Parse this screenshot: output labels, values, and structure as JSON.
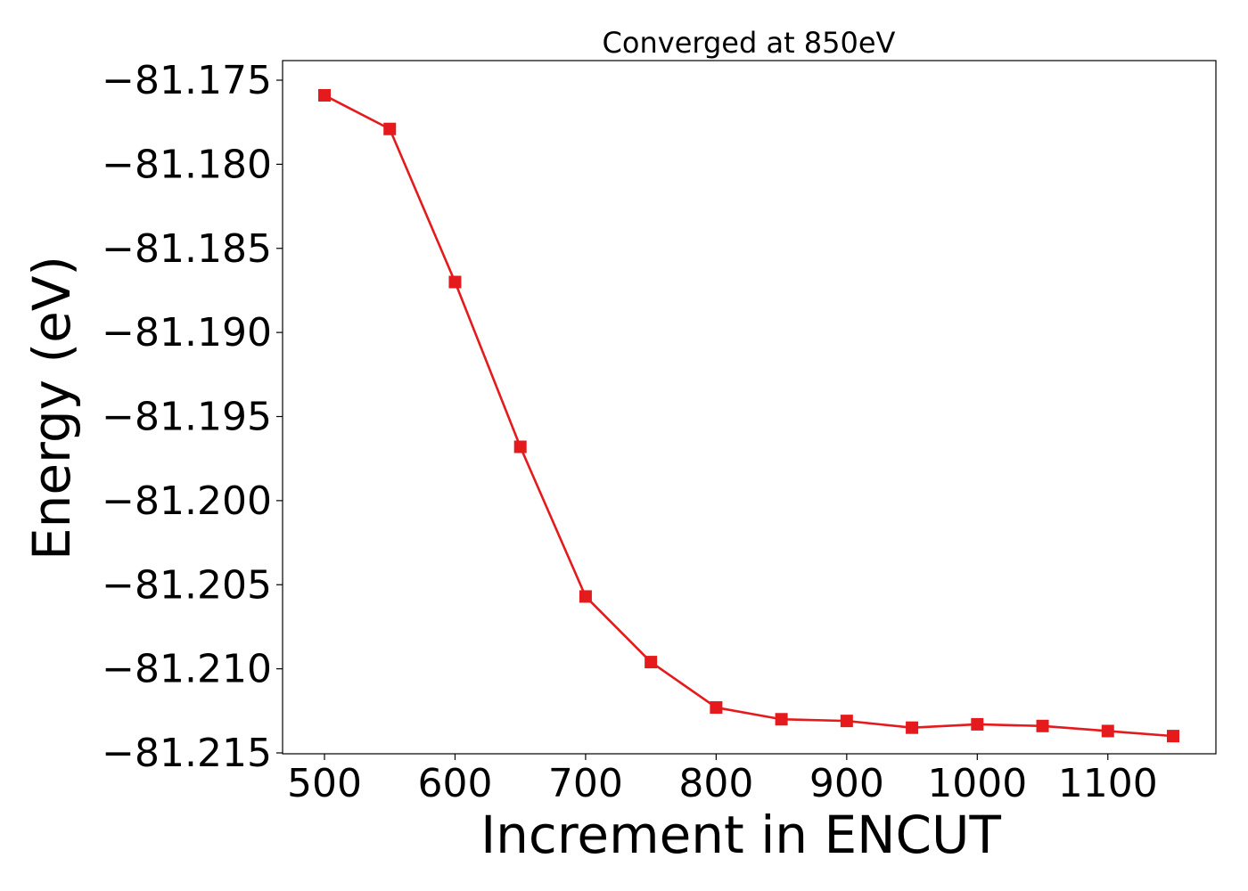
{
  "chart_data": {
    "type": "line",
    "title": "Converged at 850eV",
    "xlabel": "Increment in ENCUT",
    "ylabel": "Energy (eV)",
    "x": [
      500,
      550,
      600,
      650,
      700,
      750,
      800,
      850,
      900,
      950,
      1000,
      1050,
      1100,
      1150
    ],
    "series": [
      {
        "values": [
          -81.1759,
          -81.1779,
          -81.187,
          -81.1968,
          -81.2057,
          -81.2096,
          -81.2123,
          -81.213,
          -81.2131,
          -81.2135,
          -81.2133,
          -81.2134,
          -81.2137,
          -81.214
        ],
        "color": "#e41a1c",
        "marker": "square"
      }
    ],
    "xlim": [
      468,
      1151
    ],
    "ylim": [
      -81.2156,
      -81.174
    ],
    "xticks": [
      500,
      600,
      700,
      800,
      900,
      1000,
      1100
    ],
    "xtick_labels": [
      "500",
      "600",
      "700",
      "800",
      "900",
      "1000",
      "1100"
    ],
    "yticks": [
      -81.175,
      -81.18,
      -81.185,
      -81.19,
      -81.195,
      -81.2,
      -81.205,
      -81.21,
      -81.215
    ],
    "ytick_labels": [
      "−81.175",
      "−81.180",
      "−81.185",
      "−81.190",
      "−81.195",
      "−81.200",
      "−81.205",
      "−81.210",
      "−81.215"
    ],
    "grid": false,
    "legend": false
  }
}
